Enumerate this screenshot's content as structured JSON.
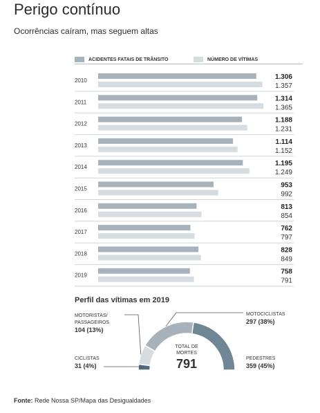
{
  "title": "Perigo contínuo",
  "subtitle": "Ocorrências caíram, mas seguem altas",
  "legend": {
    "a": "ACIDENTES FATAIS DE TRÂNSITO",
    "b": "NÚMERO DE VÍTIMAS"
  },
  "colors": {
    "accidents": "#a7b2bb",
    "victims": "#d7dce0"
  },
  "chart_data": [
    {
      "type": "bar",
      "orientation": "horizontal",
      "categories": [
        "2010",
        "2011",
        "2012",
        "2013",
        "2014",
        "2015",
        "2016",
        "2017",
        "2018",
        "2019"
      ],
      "series": [
        {
          "name": "ACIDENTES FATAIS DE TRÂNSITO",
          "values": [
            1306,
            1314,
            1188,
            1114,
            1195,
            953,
            813,
            762,
            828,
            758
          ]
        },
        {
          "name": "NÚMERO DE VÍTIMAS",
          "values": [
            1357,
            1365,
            1231,
            1152,
            1249,
            992,
            854,
            797,
            849,
            791
          ]
        }
      ],
      "labels_a": [
        "1.306",
        "1.314",
        "1.188",
        "1.114",
        "1.195",
        "953",
        "813",
        "762",
        "828",
        "758"
      ],
      "labels_b": [
        "1.357",
        "1.365",
        "1.231",
        "1.152",
        "1.249",
        "992",
        "854",
        "797",
        "849",
        "791"
      ],
      "xlim": [
        0,
        1370
      ]
    },
    {
      "type": "pie",
      "style": "half-donut",
      "title": "Perfil das vítimas em 2019",
      "slices": [
        {
          "name": "CICLISTAS",
          "value": 31,
          "label": "31 (4%)",
          "color": "#4f6a7e"
        },
        {
          "name": "MOTORISTAS/ PASSAGEIROS",
          "value": 104,
          "label": "104 (13%)",
          "color": "#d7dce0"
        },
        {
          "name": "MOTOCICLISTAS",
          "value": 297,
          "label": "297 (38%)",
          "color": "#a7b2bb"
        },
        {
          "name": "PEDESTRES",
          "value": 359,
          "label": "359 (45%)",
          "color": "#6f8695"
        }
      ],
      "total_label": "TOTAL DE MORTES",
      "total": "791"
    }
  ],
  "source": {
    "prefix": "Fonte:",
    "text": "Rede Nossa SP/Mapa das Desigualdades"
  }
}
